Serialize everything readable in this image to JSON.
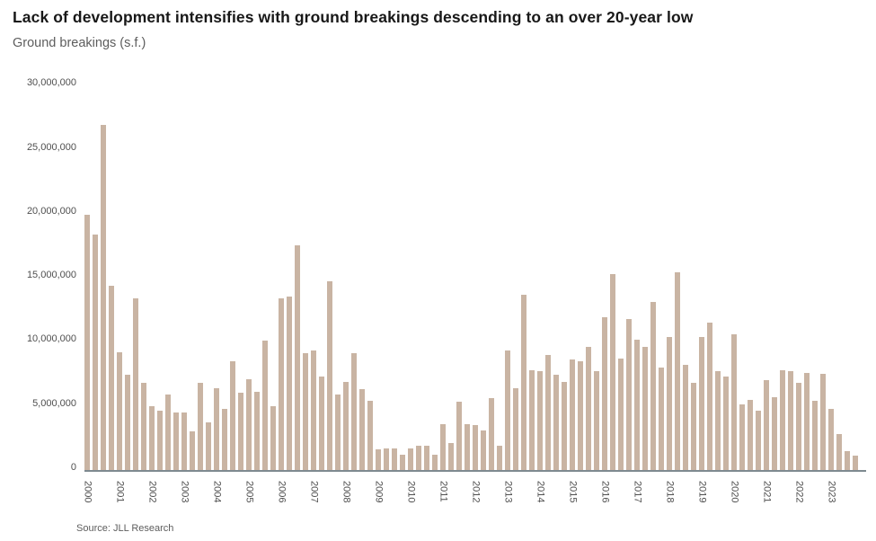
{
  "header": {
    "title": "Lack of development intensifies with ground breakings descending to an over 20-year low",
    "subtitle": "Ground breakings (s.f.)"
  },
  "footer": {
    "source": "Source: JLL Research"
  },
  "colors": {
    "bar": "#c9b4a3",
    "axis_line": "#7e8a90",
    "title_text": "#181818",
    "muted_text": "#5d5d5d",
    "tick_text": "#4f4f4f"
  },
  "chart_data": {
    "type": "bar",
    "title": "Lack of development intensifies with ground breakings descending to an over 20-year low",
    "subtitle": "Ground breakings (s.f.)",
    "xlabel": "",
    "ylabel": "Ground breakings (s.f.)",
    "ylim": [
      0,
      30000000
    ],
    "ytick_interval": 5000000,
    "yticks": [
      {
        "value": 0,
        "label": "0"
      },
      {
        "value": 5000000,
        "label": "5,000,000"
      },
      {
        "value": 10000000,
        "label": "10,000,000"
      },
      {
        "value": 15000000,
        "label": "15,000,000"
      },
      {
        "value": 20000000,
        "label": "20,000,000"
      },
      {
        "value": 25000000,
        "label": "25,000,000"
      },
      {
        "value": 30000000,
        "label": "30,000,000"
      }
    ],
    "grid": false,
    "legend": "none",
    "categories": [
      "2000",
      "2001",
      "2002",
      "2003",
      "2004",
      "2005",
      "2006",
      "2007",
      "2008",
      "2009",
      "2010",
      "2011",
      "2012",
      "2013",
      "2014",
      "2015",
      "2016",
      "2017",
      "2018",
      "2019",
      "2020",
      "2021",
      "2022",
      "2023"
    ],
    "quarters_per_year": 4,
    "series": [
      {
        "name": "Ground breakings (s.f.)",
        "values_by_year": [
          [
            19900000,
            18400000,
            26900000,
            14400000
          ],
          [
            9200000,
            7400000,
            13400000,
            6800000
          ],
          [
            5000000,
            4600000,
            5900000,
            4500000
          ],
          [
            4500000,
            3000000,
            6800000,
            3700000
          ],
          [
            6400000,
            4800000,
            8500000,
            6000000
          ],
          [
            7100000,
            6100000,
            10100000,
            5000000
          ],
          [
            13400000,
            13500000,
            17500000,
            9100000
          ],
          [
            9300000,
            7300000,
            14700000,
            5900000
          ],
          [
            6900000,
            9100000,
            6300000,
            5400000
          ],
          [
            1600000,
            1700000,
            1700000,
            1200000
          ],
          [
            1700000,
            1900000,
            1900000,
            1200000
          ],
          [
            3600000,
            2100000,
            5300000,
            3600000
          ],
          [
            3500000,
            3100000,
            5600000,
            1900000
          ],
          [
            9300000,
            6400000,
            13700000,
            7800000
          ],
          [
            7700000,
            9000000,
            7400000,
            6900000
          ],
          [
            8600000,
            8500000,
            9600000,
            7700000
          ],
          [
            11900000,
            15300000,
            8700000,
            11800000
          ],
          [
            10200000,
            9600000,
            13100000,
            8000000
          ],
          [
            10400000,
            15400000,
            8200000,
            6800000
          ],
          [
            10400000,
            11500000,
            7700000,
            7300000
          ],
          [
            10600000,
            5100000,
            5500000,
            4600000
          ],
          [
            7000000,
            5700000,
            7800000,
            7700000
          ],
          [
            6800000,
            7600000,
            5400000,
            7500000
          ],
          [
            4800000,
            2800000,
            1500000,
            1100000
          ]
        ]
      }
    ]
  }
}
